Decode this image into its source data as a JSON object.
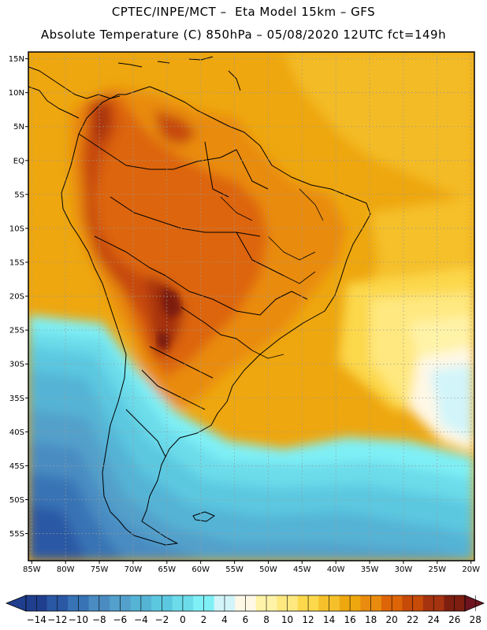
{
  "header": {
    "line1": "CPTEC/INPE/MCT –  Eta Model 15km – GFS",
    "line2": "Absolute Temperature (C) 850hPa – 05/08/2020 12UTC fct=149h"
  },
  "map": {
    "lat_labels": [
      "15N",
      "10N",
      "5N",
      "EQ",
      "5S",
      "10S",
      "15S",
      "20S",
      "25S",
      "30S",
      "35S",
      "40S",
      "45S",
      "50S",
      "55S"
    ],
    "lon_labels": [
      "85W",
      "80W",
      "75W",
      "70W",
      "65W",
      "60W",
      "55W",
      "50W",
      "45W",
      "40W",
      "35W",
      "30W",
      "25W",
      "20W"
    ],
    "lat_range": [
      16,
      -59
    ],
    "lon_range": [
      -85.5,
      -19.5
    ],
    "grid_style": "dotted"
  },
  "colorbar": {
    "ticks": [
      "-14",
      "-12",
      "-10",
      "-8",
      "-6",
      "-4",
      "-2",
      "0",
      "2",
      "4",
      "6",
      "8",
      "10",
      "12",
      "14",
      "16",
      "18",
      "20",
      "22",
      "24",
      "26",
      "28"
    ],
    "colors": [
      "#1f3f8e",
      "#2a58a4",
      "#3773b5",
      "#4a8cc2",
      "#52a0cb",
      "#55b4d6",
      "#5cc8e0",
      "#6cdcea",
      "#7ff0f6",
      "#d2f5fa",
      "#fff8e6",
      "#fff3a8",
      "#ffe880",
      "#fcd84c",
      "#f5c02a",
      "#eea70f",
      "#e98b0f",
      "#dd6508",
      "#c64a08",
      "#a53310",
      "#7d1e10"
    ],
    "under_color": "#1f3f8e",
    "over_color": "#6e1420"
  }
}
